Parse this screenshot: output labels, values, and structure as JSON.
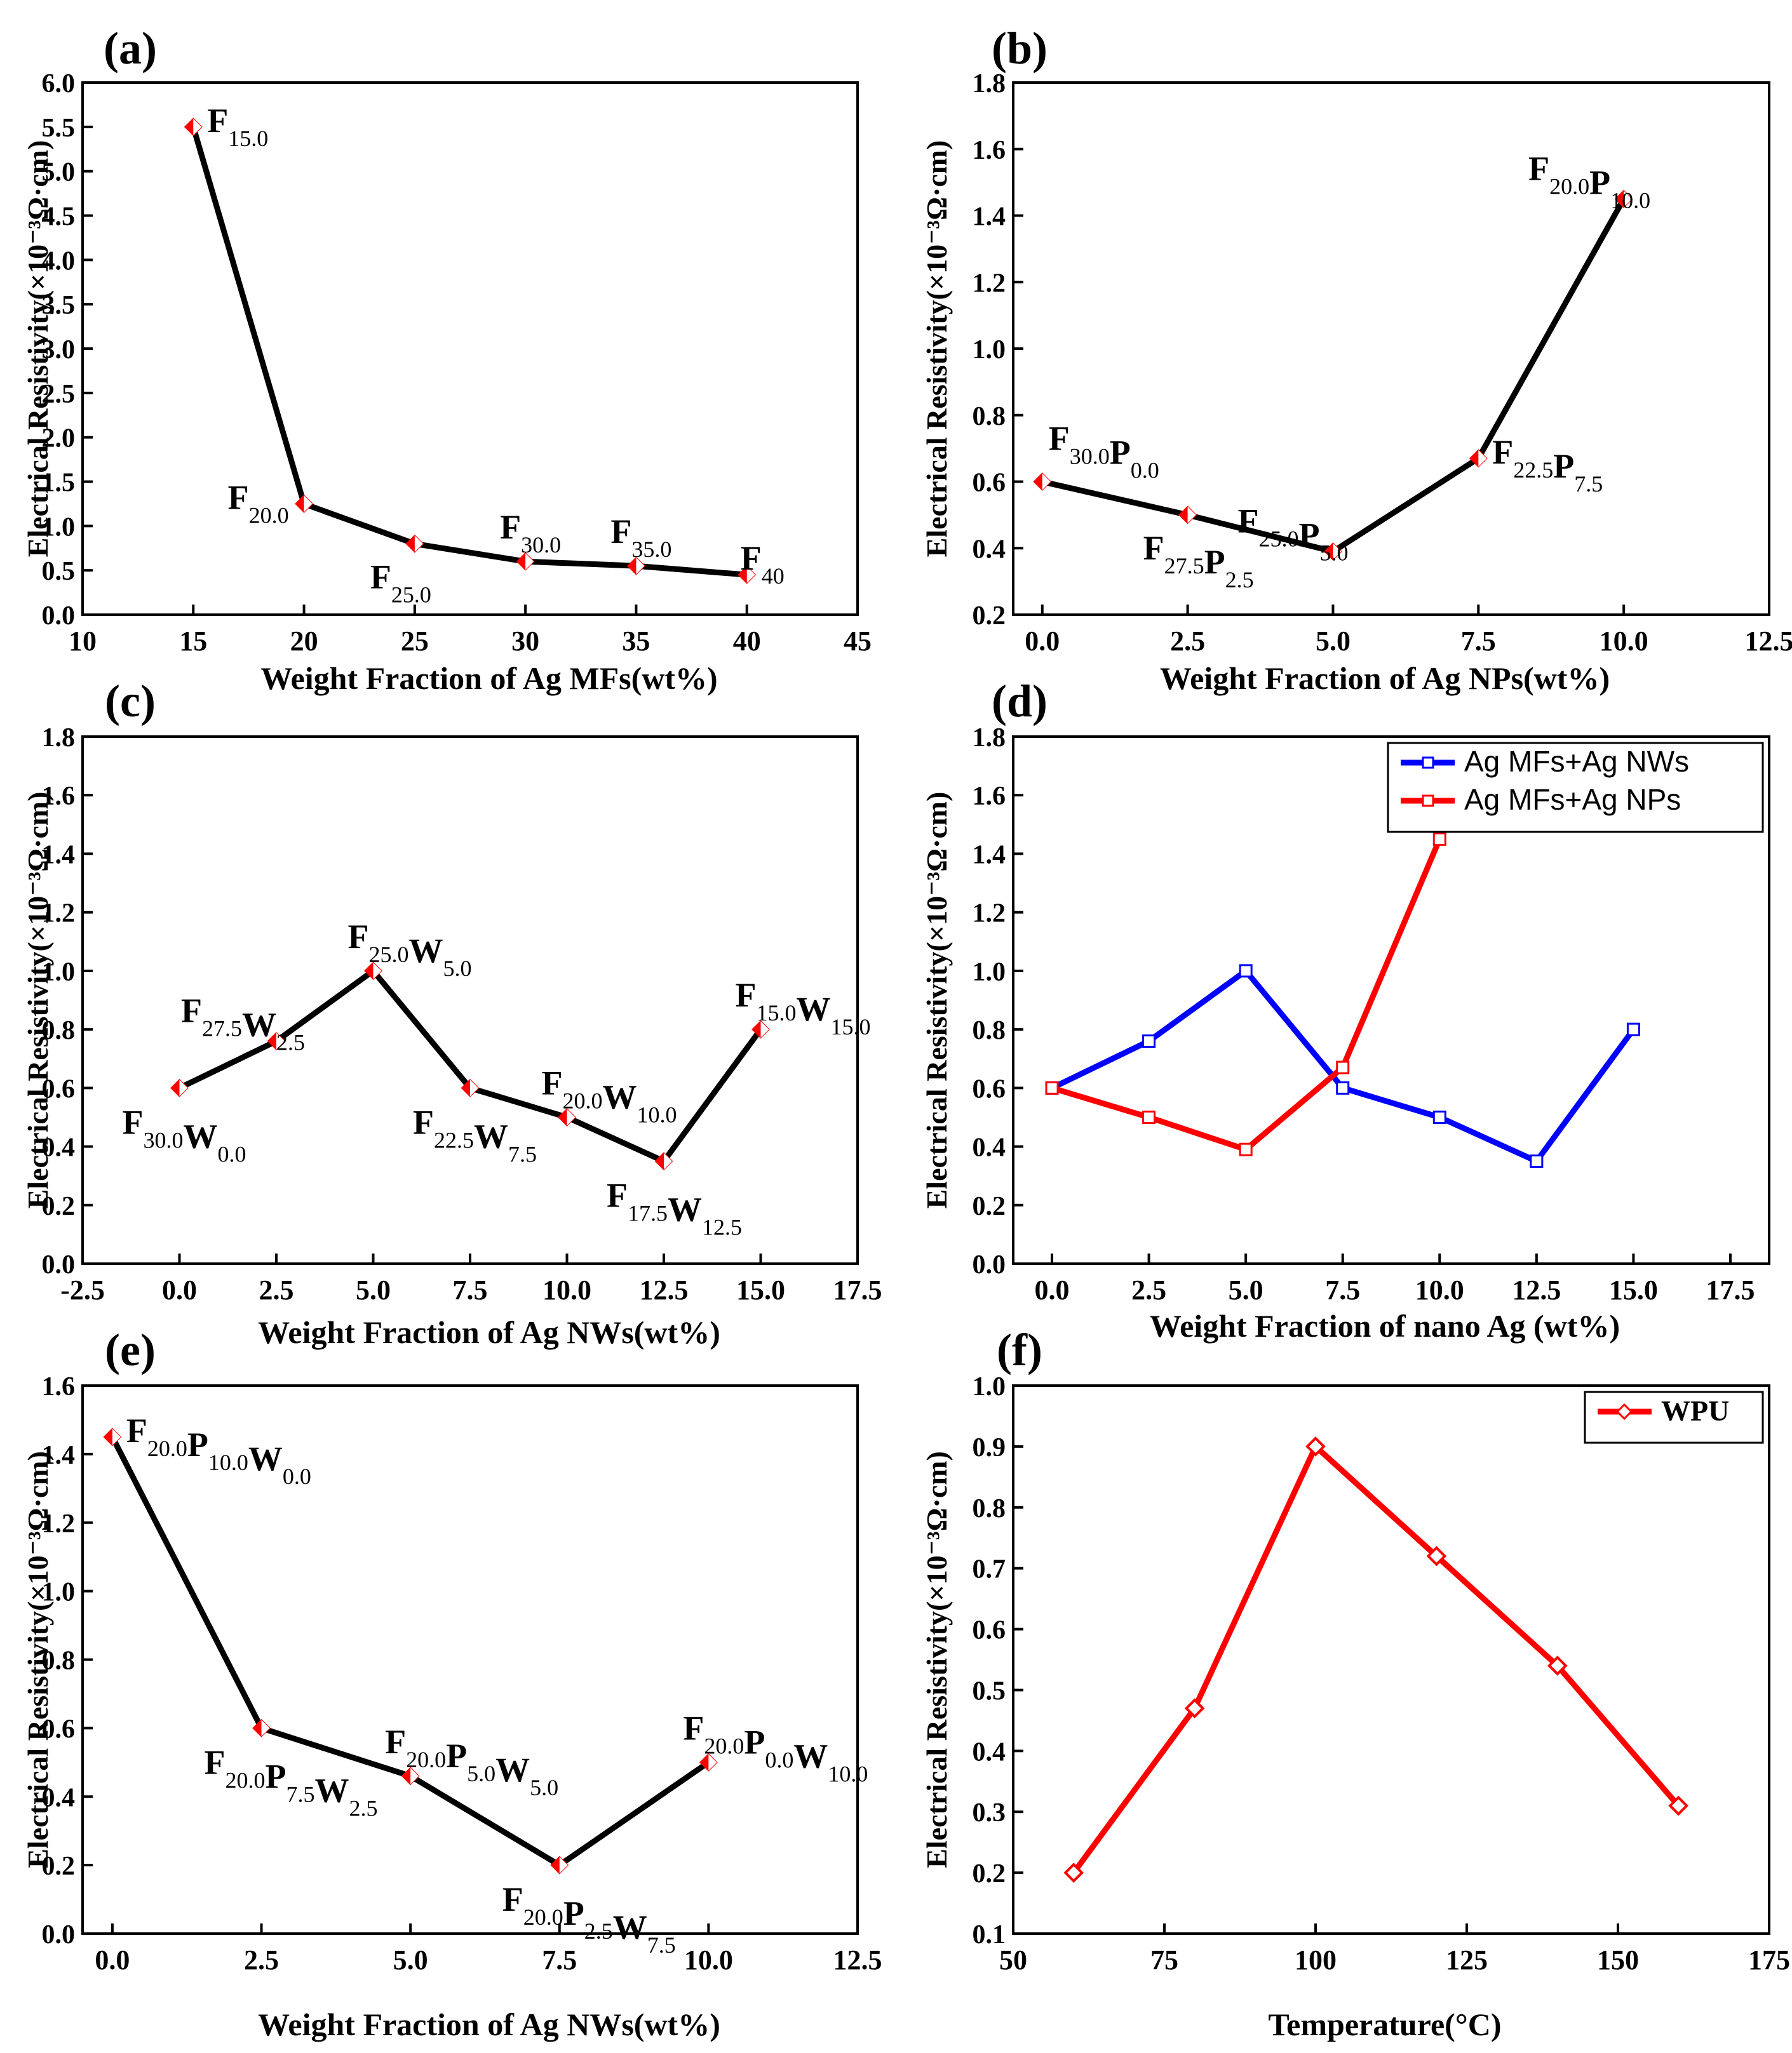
{
  "chart_data": [
    {
      "panel": "(a)",
      "type": "line",
      "xlabel": "Weight Fraction of Ag MFs(wt%)",
      "ylabel": "Electrical Resistivity(×10⁻³Ω·cm)",
      "xlim": [
        10,
        45
      ],
      "ylim": [
        0.0,
        6.0
      ],
      "xticks": [
        10,
        15,
        20,
        25,
        30,
        35,
        40,
        45
      ],
      "yticks": [
        0.0,
        0.5,
        1.0,
        1.5,
        2.0,
        2.5,
        3.0,
        3.5,
        4.0,
        4.5,
        5.0,
        5.5,
        6.0
      ],
      "x_decimals": 0,
      "y_decimals": 1,
      "series": [
        {
          "name": "",
          "color": "#000000",
          "marker": "diamond",
          "x": [
            15,
            20,
            25,
            30,
            35,
            40
          ],
          "values": [
            5.5,
            1.25,
            0.8,
            0.6,
            0.55,
            0.45
          ]
        }
      ],
      "annotations": [
        {
          "parts": [
            [
              "F",
              ""
            ],
            [
              "",
              "15.0"
            ]
          ],
          "at": [
            15,
            5.5
          ],
          "anchor": "right"
        },
        {
          "parts": [
            [
              "F",
              ""
            ],
            [
              "",
              "20.0"
            ]
          ],
          "at": [
            20,
            1.25
          ],
          "anchor": "left"
        },
        {
          "parts": [
            [
              "F",
              ""
            ],
            [
              "",
              "25.0"
            ]
          ],
          "at": [
            25,
            0.8
          ],
          "anchor": "below-left"
        },
        {
          "parts": [
            [
              "F",
              ""
            ],
            [
              "",
              "30.0"
            ]
          ],
          "at": [
            30,
            0.6
          ],
          "anchor": "above"
        },
        {
          "parts": [
            [
              "F",
              ""
            ],
            [
              "",
              "35.0"
            ]
          ],
          "at": [
            35,
            0.55
          ],
          "anchor": "above"
        },
        {
          "parts": [
            [
              "F",
              ""
            ],
            [
              "",
              "40"
            ]
          ],
          "at": [
            40,
            0.45
          ],
          "anchor": "right-up"
        }
      ]
    },
    {
      "panel": "(b)",
      "type": "line",
      "xlabel": "Weight Fraction of Ag NPs(wt%)",
      "ylabel": "Electrical Resistivity(×10⁻³Ω·cm)",
      "xlim": [
        -0.5,
        12.5
      ],
      "ylim": [
        0.2,
        1.8
      ],
      "xticks": [
        0.0,
        2.5,
        5.0,
        7.5,
        10.0,
        12.5
      ],
      "yticks": [
        0.2,
        0.4,
        0.6,
        0.8,
        1.0,
        1.2,
        1.4,
        1.6,
        1.8
      ],
      "x_decimals": 1,
      "y_decimals": 1,
      "series": [
        {
          "name": "",
          "color": "#000000",
          "marker": "diamond",
          "x": [
            0.0,
            2.5,
            5.0,
            7.5,
            10.0
          ],
          "values": [
            0.6,
            0.5,
            0.39,
            0.67,
            1.45
          ]
        }
      ],
      "annotations": [
        {
          "parts": [
            [
              "F",
              ""
            ],
            [
              "",
              "30.0"
            ],
            [
              "P",
              ""
            ],
            [
              "",
              "0.0"
            ]
          ],
          "at": [
            0.0,
            0.6
          ],
          "anchor": "above-right"
        },
        {
          "parts": [
            [
              "F",
              ""
            ],
            [
              "",
              "27.5"
            ],
            [
              "P",
              ""
            ],
            [
              "",
              "2.5"
            ]
          ],
          "at": [
            2.5,
            0.5
          ],
          "anchor": "below-left"
        },
        {
          "parts": [
            [
              "F",
              ""
            ],
            [
              "",
              "25.0"
            ],
            [
              "P",
              ""
            ],
            [
              "",
              "5.0"
            ]
          ],
          "at": [
            5.0,
            0.39
          ],
          "anchor": "above-left"
        },
        {
          "parts": [
            [
              "F",
              ""
            ],
            [
              "",
              "22.5"
            ],
            [
              "P",
              ""
            ],
            [
              "",
              "7.5"
            ]
          ],
          "at": [
            7.5,
            0.67
          ],
          "anchor": "right"
        },
        {
          "parts": [
            [
              "F",
              ""
            ],
            [
              "",
              "20.0"
            ],
            [
              "P",
              ""
            ],
            [
              "",
              "10.0"
            ]
          ],
          "at": [
            10.0,
            1.45
          ],
          "anchor": "above-left"
        }
      ]
    },
    {
      "panel": "(c)",
      "type": "line",
      "xlabel": "Weight Fraction of Ag NWs(wt%)",
      "ylabel": "Electrical Resistivity(×10⁻³Ω·cm)",
      "xlim": [
        -2.5,
        17.5
      ],
      "ylim": [
        0.0,
        1.8
      ],
      "xticks": [
        -2.5,
        0.0,
        2.5,
        5.0,
        7.5,
        10.0,
        12.5,
        15.0,
        17.5
      ],
      "yticks": [
        0.0,
        0.2,
        0.4,
        0.6,
        0.8,
        1.0,
        1.2,
        1.4,
        1.6,
        1.8
      ],
      "x_decimals": 1,
      "y_decimals": 1,
      "series": [
        {
          "name": "",
          "color": "#000000",
          "marker": "diamond",
          "x": [
            0.0,
            2.5,
            5.0,
            7.5,
            10.0,
            12.5,
            15.0
          ],
          "values": [
            0.6,
            0.76,
            1.0,
            0.6,
            0.5,
            0.35,
            0.8
          ]
        }
      ],
      "annotations": [
        {
          "parts": [
            [
              "F",
              ""
            ],
            [
              "",
              "30.0"
            ],
            [
              "W",
              ""
            ],
            [
              "",
              "0.0"
            ]
          ],
          "at": [
            0.0,
            0.6
          ],
          "anchor": "below"
        },
        {
          "parts": [
            [
              "F",
              ""
            ],
            [
              "",
              "27.5"
            ],
            [
              "W",
              ""
            ],
            [
              "",
              "2.5"
            ]
          ],
          "at": [
            2.5,
            0.76
          ],
          "anchor": "above-left"
        },
        {
          "parts": [
            [
              "F",
              ""
            ],
            [
              "",
              "25.0"
            ],
            [
              "W",
              ""
            ],
            [
              "",
              "5.0"
            ]
          ],
          "at": [
            5.0,
            1.0
          ],
          "anchor": "above"
        },
        {
          "parts": [
            [
              "F",
              ""
            ],
            [
              "",
              "22.5"
            ],
            [
              "W",
              ""
            ],
            [
              "",
              "7.5"
            ]
          ],
          "at": [
            7.5,
            0.6
          ],
          "anchor": "below"
        },
        {
          "parts": [
            [
              "F",
              ""
            ],
            [
              "",
              "20.0"
            ],
            [
              "W",
              ""
            ],
            [
              "",
              "10.0"
            ]
          ],
          "at": [
            10.0,
            0.5
          ],
          "anchor": "above"
        },
        {
          "parts": [
            [
              "F",
              ""
            ],
            [
              "",
              "17.5"
            ],
            [
              "W",
              ""
            ],
            [
              "",
              "12.5"
            ]
          ],
          "at": [
            12.5,
            0.35
          ],
          "anchor": "below"
        },
        {
          "parts": [
            [
              "F",
              ""
            ],
            [
              "",
              "15.0"
            ],
            [
              "W",
              ""
            ],
            [
              "",
              "15.0"
            ]
          ],
          "at": [
            15.0,
            0.8
          ],
          "anchor": "above"
        }
      ]
    },
    {
      "panel": "(d)",
      "type": "line",
      "xlabel": "Weight Fraction of nano Ag (wt%)",
      "ylabel": "Electrical Resistivity(×10⁻³Ω·cm)",
      "xlim": [
        -1.0,
        18.5
      ],
      "ylim": [
        0.0,
        1.8
      ],
      "xticks": [
        0.0,
        2.5,
        5.0,
        7.5,
        10.0,
        12.5,
        15.0,
        17.5
      ],
      "yticks": [
        0.0,
        0.2,
        0.4,
        0.6,
        0.8,
        1.0,
        1.2,
        1.4,
        1.6,
        1.8
      ],
      "x_decimals": 1,
      "y_decimals": 1,
      "legend": "top-right",
      "series": [
        {
          "name": "Ag MFs+Ag NWs",
          "color": "#0000ff",
          "marker": "square",
          "x": [
            0.0,
            2.5,
            5.0,
            7.5,
            10.0,
            12.5,
            15.0
          ],
          "values": [
            0.6,
            0.76,
            1.0,
            0.6,
            0.5,
            0.35,
            0.8
          ]
        },
        {
          "name": "Ag MFs+Ag NPs",
          "color": "#ff0000",
          "marker": "square",
          "x": [
            0.0,
            2.5,
            5.0,
            7.5,
            10.0
          ],
          "values": [
            0.6,
            0.5,
            0.39,
            0.67,
            1.45
          ]
        }
      ],
      "annotations": []
    },
    {
      "panel": "(e)",
      "type": "line",
      "xlabel": "Weight Fraction of Ag NWs(wt%)",
      "ylabel": "Electrical Resistivity(×10⁻³Ω·cm)",
      "xlim": [
        -0.5,
        12.5
      ],
      "ylim": [
        0.0,
        1.6
      ],
      "xticks": [
        0.0,
        2.5,
        5.0,
        7.5,
        10.0,
        12.5
      ],
      "yticks": [
        0.0,
        0.2,
        0.4,
        0.6,
        0.8,
        1.0,
        1.2,
        1.4,
        1.6
      ],
      "x_decimals": 1,
      "y_decimals": 1,
      "series": [
        {
          "name": "",
          "color": "#000000",
          "marker": "diamond",
          "x": [
            0.0,
            2.5,
            5.0,
            7.5,
            10.0
          ],
          "values": [
            1.45,
            0.6,
            0.46,
            0.2,
            0.5
          ]
        }
      ],
      "annotations": [
        {
          "parts": [
            [
              "F",
              ""
            ],
            [
              "",
              "20.0"
            ],
            [
              "P",
              ""
            ],
            [
              "",
              "10.0"
            ],
            [
              "W",
              ""
            ],
            [
              "",
              "0.0"
            ]
          ],
          "at": [
            0.0,
            1.45
          ],
          "anchor": "right"
        },
        {
          "parts": [
            [
              "F",
              ""
            ],
            [
              "",
              "20.0"
            ],
            [
              "P",
              ""
            ],
            [
              "",
              "7.5"
            ],
            [
              "W",
              ""
            ],
            [
              "",
              "2.5"
            ]
          ],
          "at": [
            2.5,
            0.6
          ],
          "anchor": "below"
        },
        {
          "parts": [
            [
              "F",
              ""
            ],
            [
              "",
              "20.0"
            ],
            [
              "P",
              ""
            ],
            [
              "",
              "5.0"
            ],
            [
              "W",
              ""
            ],
            [
              "",
              "5.0"
            ]
          ],
          "at": [
            5.0,
            0.46
          ],
          "anchor": "above"
        },
        {
          "parts": [
            [
              "F",
              ""
            ],
            [
              "",
              "20.0"
            ],
            [
              "P",
              ""
            ],
            [
              "",
              "2.5"
            ],
            [
              "W",
              ""
            ],
            [
              "",
              "7.5"
            ]
          ],
          "at": [
            7.5,
            0.2
          ],
          "anchor": "below"
        },
        {
          "parts": [
            [
              "F",
              ""
            ],
            [
              "",
              "20.0"
            ],
            [
              "P",
              ""
            ],
            [
              "",
              "0.0"
            ],
            [
              "W",
              ""
            ],
            [
              "",
              "10.0"
            ]
          ],
          "at": [
            10.0,
            0.5
          ],
          "anchor": "above"
        }
      ]
    },
    {
      "panel": "(f)",
      "type": "line",
      "xlabel": "Temperature(°C)",
      "ylabel": "Electrical Resistivity(×10⁻³Ω·cm)",
      "xlim": [
        50,
        175
      ],
      "ylim": [
        0.1,
        1.0
      ],
      "xticks": [
        50,
        75,
        100,
        125,
        150,
        175
      ],
      "yticks": [
        0.1,
        0.2,
        0.3,
        0.4,
        0.5,
        0.6,
        0.7,
        0.8,
        0.9,
        1.0
      ],
      "x_decimals": 0,
      "y_decimals": 1,
      "legend": "top-right",
      "series": [
        {
          "name": "WPU",
          "color": "#ff0000",
          "marker": "diamond",
          "x": [
            60,
            80,
            100,
            120,
            140,
            160
          ],
          "values": [
            0.2,
            0.47,
            0.9,
            0.72,
            0.54,
            0.31
          ]
        }
      ],
      "annotations": []
    }
  ]
}
